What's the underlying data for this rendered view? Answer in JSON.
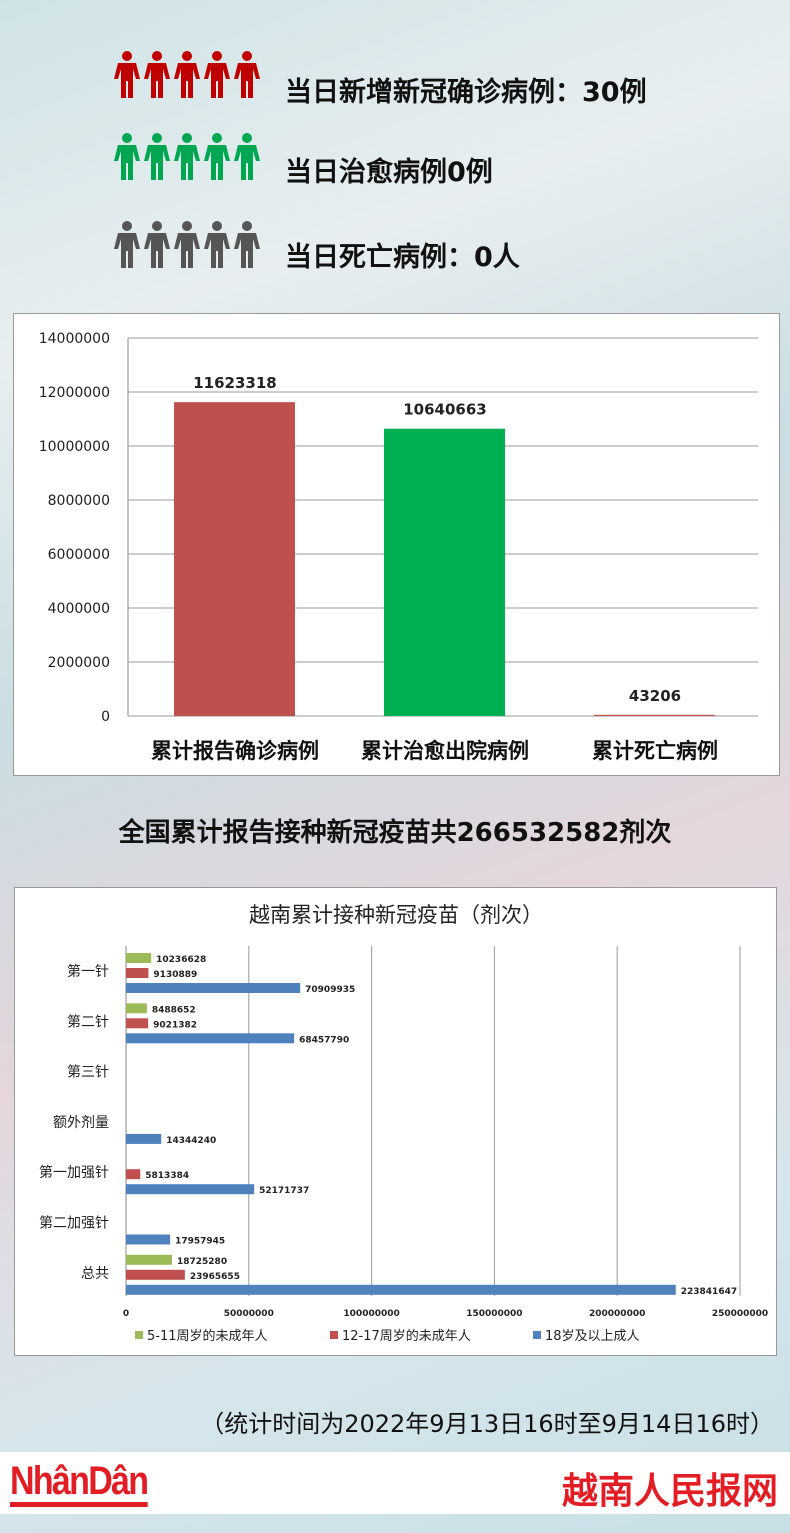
{
  "summary": [
    {
      "text": "当日新增新冠确诊病例：30例",
      "color": "#c00000",
      "icon": "people-icon"
    },
    {
      "text": "当日治愈病例0例",
      "color": "#00a650",
      "icon": "people-icon"
    },
    {
      "text": "当日死亡病例：0人",
      "color": "#555555",
      "icon": "people-icon"
    }
  ],
  "total_text": "全国累计报告接种新冠疫苗共266532582剂次",
  "stat_time": "（统计时间为2022年9月13日16时至9月14日16时）",
  "footer": {
    "logo_left": "NhânDân",
    "logo_right": "越南人民报网"
  },
  "chart_data": [
    {
      "type": "bar",
      "categories": [
        "累计报告确诊病例",
        "累计治愈出院病例",
        "累计死亡病例"
      ],
      "values": [
        11623318,
        10640663,
        43206
      ],
      "colors": [
        "#c0504d",
        "#00b050",
        "#c0504d"
      ],
      "ylim": [
        0,
        14000000
      ],
      "yticks": [
        0,
        2000000,
        4000000,
        6000000,
        8000000,
        10000000,
        12000000,
        14000000
      ],
      "grid": true
    },
    {
      "type": "bar",
      "orientation": "horizontal",
      "title": "越南累计接种新冠疫苗（剂次）",
      "categories": [
        "第一针",
        "第二针",
        "第三针",
        "额外剂量",
        "第一加强针",
        "第二加强针",
        "总共"
      ],
      "series": [
        {
          "name": "5-11周岁的未成年人",
          "color": "#9bbb59",
          "values": [
            10236628,
            8488652,
            null,
            null,
            null,
            null,
            18725280
          ]
        },
        {
          "name": "12-17周岁的未成年人",
          "color": "#c0504d",
          "values": [
            9130889,
            9021382,
            null,
            null,
            5813384,
            null,
            23965655
          ]
        },
        {
          "name": "18岁及以上成人",
          "color": "#4f81bd",
          "values": [
            70909935,
            68457790,
            null,
            14344240,
            52171737,
            17957945,
            223841647
          ]
        }
      ],
      "xlim": [
        0,
        250000000
      ],
      "xticks": [
        0,
        50000000,
        100000000,
        150000000,
        200000000,
        250000000
      ],
      "grid": true,
      "legend": "bottom"
    }
  ]
}
